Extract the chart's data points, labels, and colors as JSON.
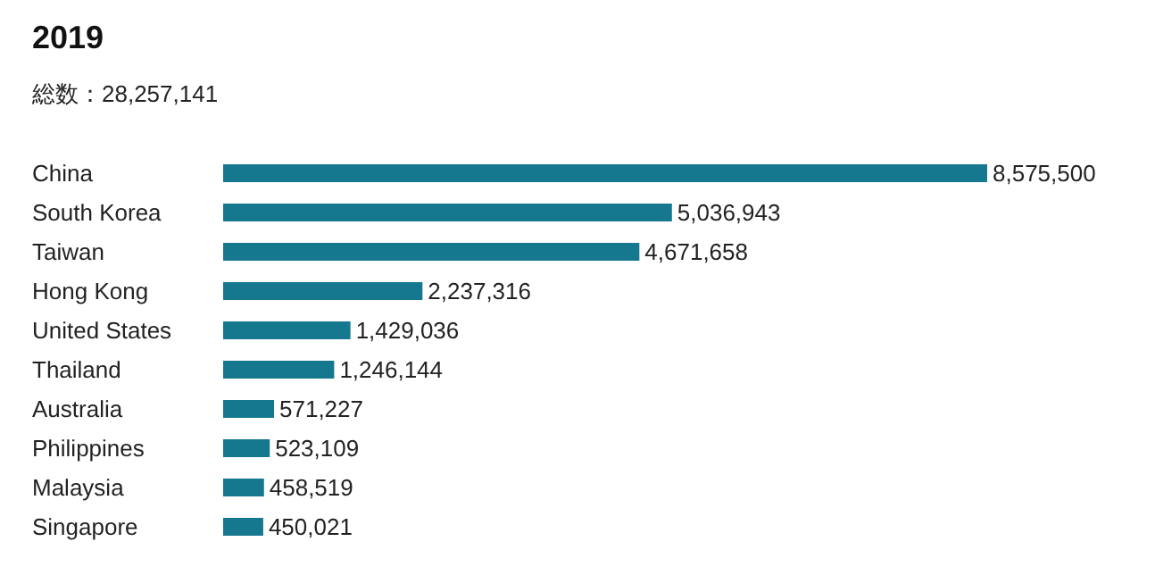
{
  "chart_data": {
    "type": "bar",
    "orientation": "horizontal",
    "title": "2019",
    "subtitle": "総数：28,257,141",
    "categories": [
      "China",
      "South Korea",
      "Taiwan",
      "Hong Kong",
      "United States",
      "Thailand",
      "Australia",
      "Philippines",
      "Malaysia",
      "Singapore"
    ],
    "values": [
      8575500,
      5036943,
      4671658,
      2237316,
      1429036,
      1246144,
      571227,
      523109,
      458519,
      450021
    ],
    "value_labels": [
      "8,575,500",
      "5,036,943",
      "4,671,658",
      "2,237,316",
      "1,429,036",
      "1,246,144",
      "571,227",
      "523,109",
      "458,519",
      "450,021"
    ],
    "color": "#16788f"
  }
}
